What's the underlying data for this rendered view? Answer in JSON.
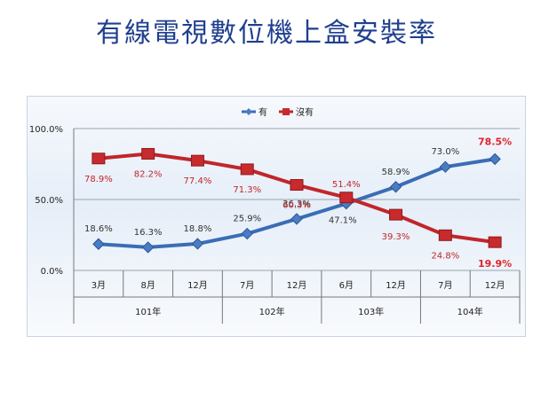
{
  "page": {
    "title": "有線電視數位機上盒安裝率"
  },
  "chart_data": {
    "type": "line",
    "categories": [
      "3月",
      "8月",
      "12月",
      "7月",
      "12月",
      "6月",
      "12月",
      "7月",
      "12月"
    ],
    "groups": [
      {
        "label": "101年",
        "span": 3
      },
      {
        "label": "102年",
        "span": 2
      },
      {
        "label": "103年",
        "span": 2
      },
      {
        "label": "104年",
        "span": 2
      }
    ],
    "series": [
      {
        "name": "有",
        "color": "#3a6db5",
        "values": [
          18.6,
          16.3,
          18.8,
          25.9,
          36.3,
          47.1,
          58.9,
          73.0,
          78.5
        ],
        "labels": [
          "18.6%",
          "16.3%",
          "18.8%",
          "25.9%",
          "36.3%",
          "47.1%",
          "58.9%",
          "73.0%",
          "78.5%"
        ]
      },
      {
        "name": "沒有",
        "color": "#c0262a",
        "values": [
          78.9,
          82.2,
          77.4,
          71.3,
          60.3,
          51.4,
          39.3,
          24.8,
          19.9
        ],
        "labels": [
          "78.9%",
          "82.2%",
          "77.4%",
          "71.3%",
          "60.3%",
          "51.4%",
          "39.3%",
          "24.8%",
          "19.9%"
        ]
      }
    ],
    "yticks": [
      "0.0%",
      "50.0%",
      "100.0%"
    ],
    "ylim": [
      0,
      100
    ],
    "grid": true,
    "legend": "top-center"
  }
}
